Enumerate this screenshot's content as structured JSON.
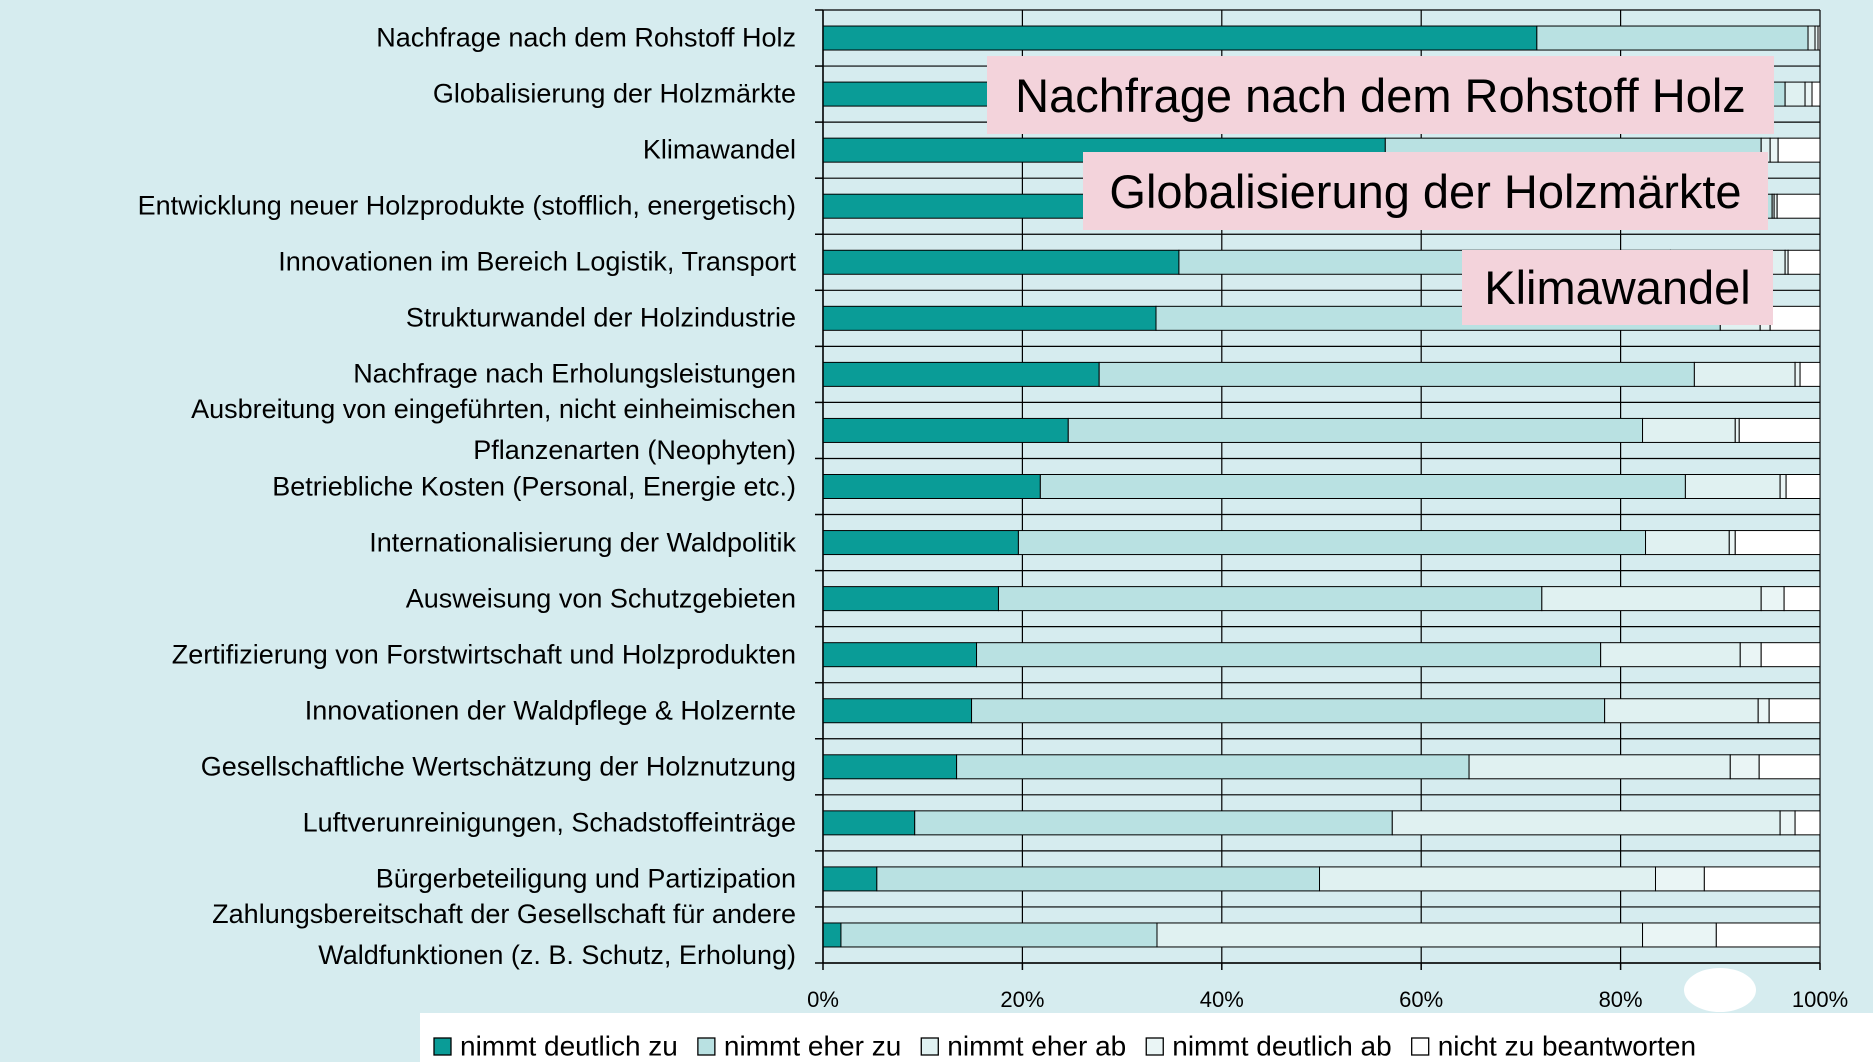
{
  "chart_data": {
    "type": "stacked-bar-horizontal",
    "categories": [
      "Nachfrage nach dem Rohstoff Holz",
      "Globalisierung der Holzmärkte",
      "Klimawandel",
      "Entwicklung neuer Holzprodukte (stofflich, energetisch)",
      "Innovationen im Bereich Logistik, Transport",
      "Strukturwandel der Holzindustrie",
      "Nachfrage nach Erholungsleistungen",
      "Ausbreitung von eingeführten, nicht einheimischen\nPflanzenarten (Neophyten)",
      "Betriebliche Kosten (Personal, Energie etc.)",
      "Internationalisierung der Waldpolitik",
      "Ausweisung von Schutzgebieten",
      "Zertifizierung von Forstwirtschaft und Holzprodukten",
      "Innovationen der Waldpflege & Holzernte",
      "Gesellschaftliche Wertschätzung der Holznutzung",
      "Luftverunreinigungen, Schadstoffeinträge",
      "Bürgerbeteiligung und Partizipation",
      "Zahlungsbereitschaft der Gesellschaft für andere\nWaldfunktionen (z. B. Schutz, Erholung)"
    ],
    "series": [
      {
        "name": "nimmt deutlich zu",
        "color": "#0a9c97",
        "values": [
          71.6,
          62,
          56.4,
          50,
          35.7,
          33.4,
          27.7,
          24.6,
          21.8,
          19.6,
          17.6,
          15.4,
          14.9,
          13.4,
          9.2,
          5.4,
          1.8
        ]
      },
      {
        "name": "nimmt eher zu",
        "color": "#b9e1e2",
        "values": [
          27.2,
          34.5,
          37.7,
          45.2,
          49.3,
          56.6,
          59.7,
          57.6,
          64.7,
          62.9,
          54.5,
          62.6,
          63.5,
          51.4,
          47.9,
          44.4,
          31.7
        ]
      },
      {
        "name": "nimmt eher ab",
        "color": "#e0f1f1",
        "values": [
          0.7,
          2,
          0.9,
          0.2,
          11.5,
          4,
          10.1,
          9.3,
          9.5,
          8.4,
          22,
          14,
          15.4,
          26.2,
          38.9,
          33.7,
          48.7
        ]
      },
      {
        "name": "nimmt deutlich ab",
        "color": "#eaf5f5",
        "values": [
          0.3,
          0.7,
          0.8,
          0.3,
          0.3,
          1,
          0.5,
          0.4,
          0.6,
          0.6,
          2.3,
          2.1,
          1.1,
          2.9,
          1.5,
          4.9,
          7.4
        ]
      },
      {
        "name": "nicht zu beantworten",
        "color": "#ffffff",
        "values": [
          0.2,
          0.8,
          4.2,
          4.3,
          3.2,
          5,
          2,
          8.1,
          3.4,
          8.5,
          3.6,
          5.9,
          5.1,
          6.1,
          2.5,
          11.6,
          10.4
        ]
      }
    ],
    "xlim": [
      0,
      100
    ],
    "xticks": [
      {
        "value": 0,
        "label": "0%"
      },
      {
        "value": 20,
        "label": "20%"
      },
      {
        "value": 40,
        "label": "40%"
      },
      {
        "value": 60,
        "label": "60%"
      },
      {
        "value": 80,
        "label": "80%"
      },
      {
        "value": 100,
        "label": "100%"
      }
    ],
    "grid": true,
    "legend": "bottom",
    "annotations": [
      "Nachfrage nach dem Rohstoff Holz",
      "Globalisierung der Holzmärkte",
      "Klimawandel"
    ]
  }
}
